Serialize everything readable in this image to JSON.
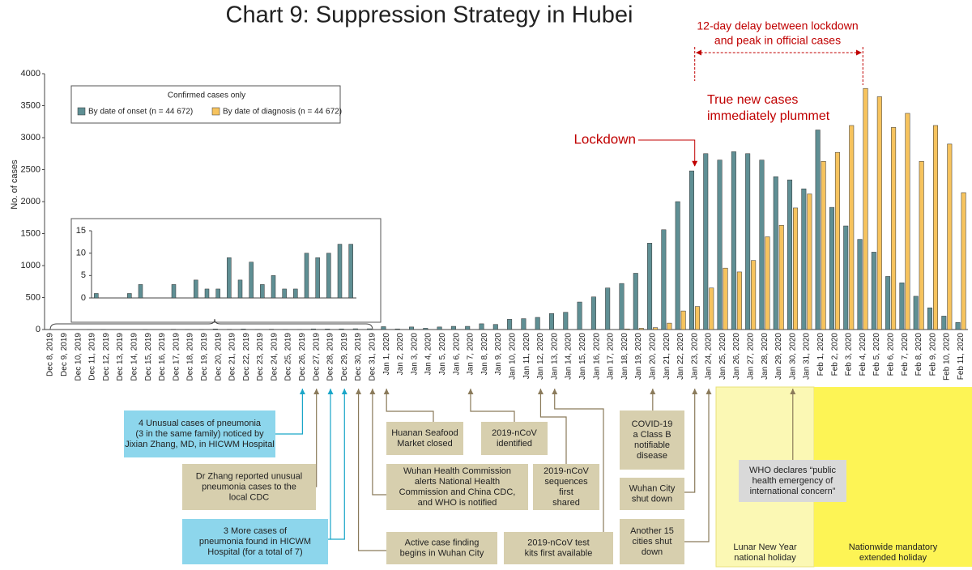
{
  "chart_data": [
    {
      "type": "bar",
      "title": "Chart 9: Suppression Strategy in Hubei",
      "y_label": "No. of cases",
      "categories": [
        "Dec 8, 2019",
        "Dec 9, 2019",
        "Dec 10, 2019",
        "Dec 11, 2019",
        "Dec 12, 2019",
        "Dec 13, 2019",
        "Dec 14, 2019",
        "Dec 15, 2019",
        "Dec 16, 2019",
        "Dec 17, 2019",
        "Dec 18, 2019",
        "Dec 19, 2019",
        "Dec 20, 2019",
        "Dec 21, 2019",
        "Dec 22, 2019",
        "Dec 23, 2019",
        "Dec 24, 2019",
        "Dec 25, 2019",
        "Dec 26, 2019",
        "Dec 27, 2019",
        "Dec 28, 2019",
        "Dec 29, 2019",
        "Dec 30, 2019",
        "Dec 31, 2019",
        "Jan 1, 2020",
        "Jan 2, 2020",
        "Jan 3, 2020",
        "Jan 4, 2020",
        "Jan 5, 2020",
        "Jan 6, 2020",
        "Jan 7, 2020",
        "Jan 8, 2020",
        "Jan 9, 2020",
        "Jan 10, 2020",
        "Jan 11, 2020",
        "Jan 12, 2020",
        "Jan 13, 2020",
        "Jan 14, 2020",
        "Jan 15, 2020",
        "Jan 16, 2020",
        "Jan 17, 2020",
        "Jan 18, 2020",
        "Jan 19, 2020",
        "Jan 20, 2020",
        "Jan 21, 2020",
        "Jan 22, 2020",
        "Jan 23, 2020",
        "Jan 24, 2020",
        "Jan 25, 2020",
        "Jan 26, 2020",
        "Jan 27, 2020",
        "Jan 28, 2020",
        "Jan 29, 2020",
        "Jan 30, 2020",
        "Jan 31, 2020",
        "Feb 1, 2020",
        "Feb 2, 2020",
        "Feb 3, 2020",
        "Feb 4, 2020",
        "Feb 5, 2020",
        "Feb 6, 2020",
        "Feb 7, 2020",
        "Feb 8, 2020",
        "Feb 9, 2020",
        "Feb 10, 2020",
        "Feb 11, 2020"
      ],
      "series": [
        {
          "name": "By date of onset (n = 44 672)",
          "color": "#5f8f94",
          "values": [
            1,
            0,
            0,
            1,
            3,
            0,
            0,
            3,
            0,
            4,
            2,
            2,
            9,
            4,
            8,
            3,
            5,
            2,
            2,
            10,
            9,
            10,
            12,
            12,
            45,
            10,
            40,
            20,
            40,
            50,
            50,
            90,
            80,
            160,
            170,
            190,
            250,
            270,
            430,
            510,
            650,
            720,
            880,
            1350,
            1560,
            2000,
            2480,
            2750,
            2650,
            2780,
            2750,
            2650,
            2390,
            2340,
            2200,
            3120,
            1910,
            1620,
            1410,
            1210,
            830,
            730,
            520,
            340,
            210,
            110
          ]
        },
        {
          "name": "By date of diagnosis (n = 44 672)",
          "color": "#f6c35e",
          "values": [
            0,
            0,
            0,
            0,
            0,
            0,
            0,
            0,
            0,
            0,
            0,
            0,
            0,
            0,
            0,
            0,
            0,
            0,
            0,
            0,
            0,
            0,
            0,
            0,
            0,
            0,
            0,
            0,
            0,
            0,
            0,
            0,
            0,
            0,
            0,
            0,
            0,
            0,
            0,
            0,
            0,
            10,
            20,
            30,
            100,
            290,
            360,
            650,
            960,
            900,
            1080,
            1450,
            1630,
            1900,
            2120,
            2630,
            2770,
            3190,
            3770,
            3640,
            3160,
            3380,
            2630,
            3190,
            2900,
            2140
          ]
        }
      ],
      "ylim": [
        0,
        4000
      ],
      "yticks": [
        0,
        500,
        1000,
        1500,
        2000,
        2500,
        3000,
        3500,
        4000
      ],
      "legend": {
        "title": "Confirmed cases only"
      },
      "annotation_color": "#c00000",
      "annotations": [
        {
          "lines": [
            "12-day delay between lockdown",
            "and peak in official cases"
          ]
        },
        {
          "lines": [
            "True new cases",
            "immediately plummet"
          ]
        },
        {
          "lines": [
            "Lockdown"
          ]
        }
      ]
    },
    {
      "type": "bar",
      "values": [
        1,
        0,
        0,
        1,
        3,
        0,
        0,
        3,
        0,
        4,
        2,
        2,
        9,
        4,
        8,
        3,
        5,
        2,
        2,
        10,
        9,
        10,
        12,
        12
      ],
      "color": "#5f8f94",
      "ylim": [
        0,
        15
      ],
      "yticks": [
        0,
        5,
        10,
        15
      ]
    }
  ],
  "timeline": [
    {
      "lines": [
        "4 Unusual cases of pneumonia",
        "(3 in the same family) noticed by",
        "Jixian Zhang, MD, in HICWM Hospital"
      ],
      "color": "#8dd6ec",
      "arrow_color": "#1aa6c8"
    },
    {
      "lines": [
        "Dr Zhang reported unusual",
        "pneumonia cases to the",
        "local CDC"
      ],
      "color": "#d7cfae",
      "arrow_color": "#8a7a5a"
    },
    {
      "lines": [
        "3 More cases of",
        "pneumonia found in HICWM",
        "Hospital (for a total of 7)"
      ],
      "color": "#8dd6ec",
      "arrow_color": "#1aa6c8"
    },
    {
      "lines": [
        "Huanan Seafood",
        "Market closed"
      ],
      "color": "#d7cfae",
      "arrow_color": "#8a7a5a"
    },
    {
      "lines": [
        "2019-nCoV",
        "identified"
      ],
      "color": "#d7cfae",
      "arrow_color": "#8a7a5a"
    },
    {
      "lines": [
        "Wuhan Health Commission",
        "alerts National Health",
        "Commission and China CDC,",
        "and WHO is notified"
      ],
      "color": "#d7cfae",
      "arrow_color": "#8a7a5a"
    },
    {
      "lines": [
        "2019-nCoV",
        "sequences",
        "first",
        "shared"
      ],
      "color": "#d7cfae",
      "arrow_color": "#8a7a5a"
    },
    {
      "lines": [
        "Active case finding",
        "begins in Wuhan City"
      ],
      "color": "#d7cfae",
      "arrow_color": "#8a7a5a"
    },
    {
      "lines": [
        "2019-nCoV test",
        "kits first available"
      ],
      "color": "#d7cfae",
      "arrow_color": "#8a7a5a"
    },
    {
      "lines": [
        "COVID-19",
        "a Class B",
        "notifiable",
        "disease"
      ],
      "color": "#d7cfae",
      "arrow_color": "#8a7a5a"
    },
    {
      "lines": [
        "Wuhan City",
        "shut down"
      ],
      "color": "#d7cfae",
      "arrow_color": "#8a7a5a"
    },
    {
      "lines": [
        "Another 15",
        "cities shut",
        "down"
      ],
      "color": "#d7cfae",
      "arrow_color": "#8a7a5a"
    },
    {
      "lines": [
        "WHO declares “public",
        "health emergency of",
        "international concern”"
      ],
      "color": "#d9d9d9",
      "arrow_color": "#8a7a5a"
    }
  ],
  "holidays": [
    {
      "lines": [
        "Lunar New Year",
        "national holiday"
      ],
      "color": "#fbf8b4"
    },
    {
      "lines": [
        "Nationwide mandatory",
        "extended holiday"
      ],
      "color": "#fdf455"
    }
  ]
}
